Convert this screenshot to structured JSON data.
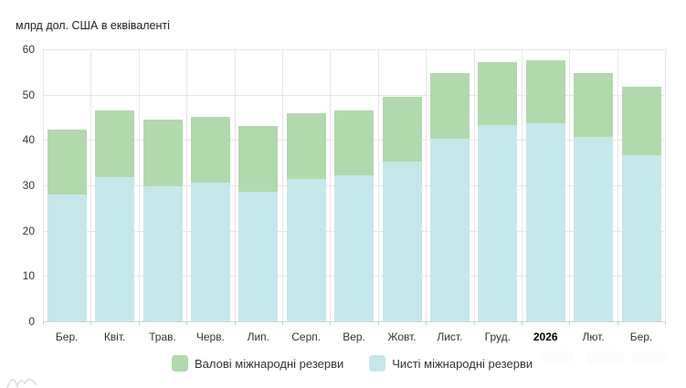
{
  "chart": {
    "title": "млрд дол. США в еквіваленті"
  },
  "chart_data": {
    "type": "bar",
    "subtype": "overlaid-stacked-columns",
    "title": "млрд дол. США в еквіваленті",
    "categories": [
      "Бер.",
      "Квіт.",
      "Трав.",
      "Черв.",
      "Лип.",
      "Серп.",
      "Вер.",
      "Жовт.",
      "Лист.",
      "Груд.",
      "2026",
      "Лют.",
      "Бер."
    ],
    "bold_category": "2026",
    "series": [
      {
        "name": "Валові міжнародні резерви",
        "color": "#b2d8ad",
        "values": [
          42.3,
          46.6,
          44.5,
          45.1,
          43.0,
          46.0,
          46.5,
          49.5,
          54.7,
          57.1,
          57.6,
          54.8,
          51.7
        ]
      },
      {
        "name": "Чисті міжнародні резерви",
        "color": "#c6e7ea",
        "values": [
          28.0,
          31.8,
          29.9,
          30.6,
          28.5,
          31.4,
          32.2,
          35.3,
          40.3,
          43.2,
          43.6,
          40.7,
          36.7
        ]
      }
    ],
    "xlabel": "",
    "ylabel": "млрд дол. США в еквіваленті",
    "ylim": [
      0,
      60
    ],
    "ytick_step": 10,
    "yticks": [
      0,
      10,
      20,
      30,
      40,
      50,
      60
    ],
    "grid": true,
    "legend_position": "bottom"
  },
  "legend": {
    "items": [
      {
        "label": "Валові міжнародні резерви",
        "color": "#b2d8ad"
      },
      {
        "label": "Чисті міжнародні резерви",
        "color": "#c6e7ea"
      }
    ]
  },
  "colors": {
    "gross": "#b2d8ad",
    "net": "#c6e7ea",
    "gridline": "#e6e6e6",
    "axis_line": "#ccd6db",
    "label_text": "#333333"
  }
}
